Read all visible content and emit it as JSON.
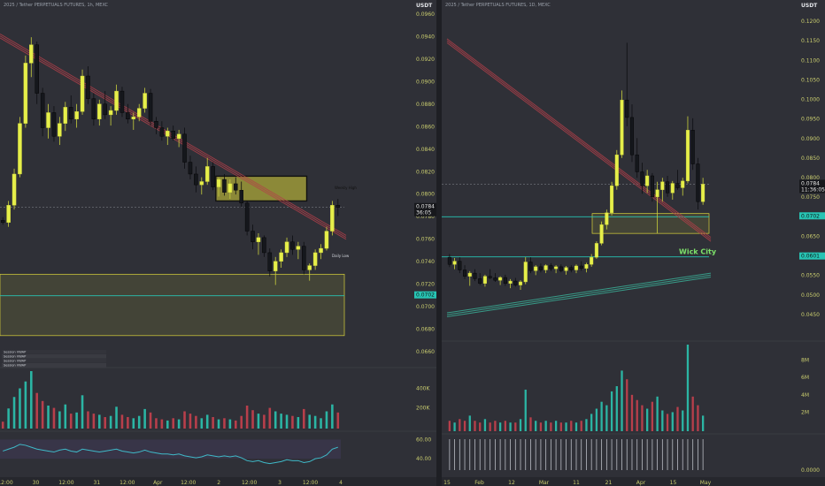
{
  "panels": [
    {
      "id": "left",
      "header": "2025 / Tether PERPETUALS FUTURES, 1h, MEXC",
      "unit": "USDT",
      "last_price": "0.0784",
      "countdown": "36:05",
      "marked_price": "0.0702",
      "price_ticks": [
        "0.0960",
        "0.0940",
        "0.0920",
        "0.0900",
        "0.0880",
        "0.0860",
        "0.0840",
        "0.0820",
        "0.0800",
        "0.0780",
        "0.0760",
        "0.0740",
        "0.0720",
        "0.0700",
        "0.0680",
        "0.0660"
      ],
      "volume_ticks": [
        "400K",
        "200K"
      ],
      "osc_ticks": [
        "60.00",
        "40.00"
      ],
      "time_ticks": [
        "12:00",
        "30",
        "12:00",
        "31",
        "12:00",
        "Apr",
        "12:00",
        "2",
        "12:00",
        "3",
        "12:00",
        "4"
      ],
      "zone_labels": [
        "Weekly High",
        "Daily Low"
      ],
      "table_rows": [
        "Session VWAP",
        "Session VWAP",
        "Session VWAP",
        "Session VWAP"
      ]
    },
    {
      "id": "right",
      "header": "2025 / Tether PERPETUALS FUTURES, 1D, MEXC",
      "unit": "USDT",
      "last_price": "0.0784",
      "countdown": "11:36:05",
      "marked_price": "0.0702",
      "marked_price_2": "0.0601",
      "annotation": "Wick City",
      "price_ticks": [
        "0.1200",
        "0.1150",
        "0.1100",
        "0.1050",
        "0.1000",
        "0.0950",
        "0.0900",
        "0.0850",
        "0.0800",
        "0.0750",
        "0.0700",
        "0.0650",
        "0.0600",
        "0.0550",
        "0.0500",
        "0.0450"
      ],
      "volume_ticks": [
        "8M",
        "6M",
        "4M",
        "2M"
      ],
      "osc_ticks": [
        "0.0000"
      ],
      "time_ticks": [
        "15",
        "Feb",
        "12",
        "Mar",
        "11",
        "21",
        "Apr",
        "15",
        "May"
      ]
    }
  ],
  "chart_data": [
    {
      "type": "candlestick",
      "panel": "left",
      "timeframe": "1h",
      "ylim": [
        0.0655,
        0.097
      ],
      "candles": [
        [
          0.0772,
          0.0775,
          0.0768,
          0.077
        ],
        [
          0.077,
          0.079,
          0.0766,
          0.0786
        ],
        [
          0.0786,
          0.082,
          0.0782,
          0.0815
        ],
        [
          0.0815,
          0.0868,
          0.0812,
          0.0862
        ],
        [
          0.0862,
          0.0925,
          0.0858,
          0.0918
        ],
        [
          0.0918,
          0.0942,
          0.0905,
          0.0935
        ],
        [
          0.0935,
          0.0938,
          0.088,
          0.089
        ],
        [
          0.089,
          0.0895,
          0.085,
          0.0858
        ],
        [
          0.0858,
          0.088,
          0.0848,
          0.0872
        ],
        [
          0.0872,
          0.0878,
          0.0845,
          0.085
        ],
        [
          0.085,
          0.0868,
          0.0842,
          0.0862
        ],
        [
          0.0862,
          0.0882,
          0.0855,
          0.0877
        ],
        [
          0.0877,
          0.0888,
          0.0862,
          0.0866
        ],
        [
          0.0866,
          0.088,
          0.0858,
          0.0873
        ],
        [
          0.0873,
          0.0912,
          0.087,
          0.0906
        ],
        [
          0.0906,
          0.0915,
          0.088,
          0.0885
        ],
        [
          0.0885,
          0.089,
          0.086,
          0.0866
        ],
        [
          0.0866,
          0.0884,
          0.086,
          0.088
        ],
        [
          0.088,
          0.0892,
          0.0866,
          0.087
        ],
        [
          0.087,
          0.0878,
          0.086,
          0.0874
        ],
        [
          0.0874,
          0.0898,
          0.087,
          0.0892
        ],
        [
          0.0892,
          0.0896,
          0.0868,
          0.0872
        ],
        [
          0.0872,
          0.088,
          0.0862,
          0.0866
        ],
        [
          0.0866,
          0.0872,
          0.0856,
          0.0868
        ],
        [
          0.0868,
          0.088,
          0.0864,
          0.0876
        ],
        [
          0.0876,
          0.0895,
          0.0872,
          0.089
        ],
        [
          0.089,
          0.0894,
          0.086,
          0.0864
        ],
        [
          0.0864,
          0.0868,
          0.0852,
          0.0858
        ],
        [
          0.0858,
          0.0864,
          0.0846,
          0.085
        ],
        [
          0.085,
          0.0858,
          0.0842,
          0.0855
        ],
        [
          0.0855,
          0.086,
          0.0846,
          0.0848
        ],
        [
          0.0848,
          0.0856,
          0.084,
          0.0852
        ],
        [
          0.0852,
          0.0858,
          0.082,
          0.0826
        ],
        [
          0.0826,
          0.0832,
          0.081,
          0.0815
        ],
        [
          0.0815,
          0.0822,
          0.0798,
          0.0805
        ],
        [
          0.0805,
          0.0812,
          0.0796,
          0.0808
        ],
        [
          0.0808,
          0.083,
          0.0805,
          0.0822
        ],
        [
          0.0822,
          0.0826,
          0.08,
          0.0803
        ],
        [
          0.0803,
          0.0812,
          0.0794,
          0.081
        ],
        [
          0.081,
          0.0815,
          0.0795,
          0.0798
        ],
        [
          0.0798,
          0.081,
          0.0792,
          0.0806
        ],
        [
          0.0806,
          0.0812,
          0.0796,
          0.08
        ],
        [
          0.08,
          0.0808,
          0.0784,
          0.0788
        ],
        [
          0.0788,
          0.079,
          0.0758,
          0.0762
        ],
        [
          0.0762,
          0.0768,
          0.0745,
          0.0752
        ],
        [
          0.0752,
          0.076,
          0.074,
          0.0756
        ],
        [
          0.0756,
          0.0758,
          0.0738,
          0.0742
        ],
        [
          0.0742,
          0.0746,
          0.072,
          0.0725
        ],
        [
          0.0725,
          0.0738,
          0.0712,
          0.0734
        ],
        [
          0.0734,
          0.0745,
          0.0728,
          0.0742
        ],
        [
          0.0742,
          0.0756,
          0.0738,
          0.0752
        ],
        [
          0.0752,
          0.0758,
          0.074,
          0.0745
        ],
        [
          0.0745,
          0.0752,
          0.0736,
          0.0748
        ],
        [
          0.0748,
          0.0752,
          0.0722,
          0.0726
        ],
        [
          0.0726,
          0.0732,
          0.0716,
          0.073
        ],
        [
          0.073,
          0.0745,
          0.0726,
          0.0742
        ],
        [
          0.0742,
          0.075,
          0.0736,
          0.0746
        ],
        [
          0.0746,
          0.0766,
          0.0744,
          0.0762
        ],
        [
          0.0762,
          0.079,
          0.0758,
          0.0786
        ],
        [
          0.0786,
          0.0792,
          0.0776,
          0.0784
        ]
      ],
      "volume": [
        0.12,
        0.35,
        0.55,
        0.7,
        0.82,
        1.0,
        0.62,
        0.48,
        0.4,
        0.36,
        0.3,
        0.42,
        0.26,
        0.28,
        0.58,
        0.3,
        0.26,
        0.24,
        0.2,
        0.22,
        0.38,
        0.24,
        0.2,
        0.18,
        0.22,
        0.34,
        0.28,
        0.18,
        0.16,
        0.14,
        0.18,
        0.16,
        0.3,
        0.26,
        0.22,
        0.18,
        0.24,
        0.2,
        0.16,
        0.18,
        0.16,
        0.14,
        0.22,
        0.4,
        0.32,
        0.26,
        0.24,
        0.36,
        0.3,
        0.26,
        0.24,
        0.22,
        0.2,
        0.34,
        0.24,
        0.22,
        0.18,
        0.3,
        0.42,
        0.28
      ],
      "oscillator": [
        48,
        50,
        52,
        55,
        54,
        52,
        50,
        49,
        48,
        47,
        49,
        50,
        48,
        47,
        50,
        49,
        48,
        47,
        48,
        49,
        50,
        48,
        47,
        46,
        47,
        49,
        47,
        46,
        45,
        45,
        44,
        45,
        43,
        42,
        41,
        42,
        44,
        43,
        42,
        43,
        42,
        43,
        41,
        38,
        37,
        38,
        36,
        35,
        36,
        37,
        39,
        38,
        38,
        36,
        37,
        40,
        41,
        44,
        50,
        52
      ],
      "osc_range": [
        30,
        65
      ],
      "trendline": [
        [
          0.0945,
          0
        ],
        [
          0.0758,
          1
        ]
      ],
      "zones": [
        {
          "name": "supply-box",
          "y": [
            0.079,
            0.0813
          ]
        },
        {
          "name": "demand-zone",
          "y": [
            0.0665,
            0.0722
          ]
        }
      ],
      "horizontal_levels": [
        0.0784,
        0.0702
      ]
    },
    {
      "type": "candlestick",
      "panel": "right",
      "timeframe": "1D",
      "ylim": [
        0.042,
        0.123
      ],
      "candles": [
        [
          0.06,
          0.0608,
          0.0575,
          0.0582
        ],
        [
          0.0582,
          0.0598,
          0.057,
          0.059
        ],
        [
          0.059,
          0.06,
          0.056,
          0.0568
        ],
        [
          0.0568,
          0.058,
          0.0545,
          0.0552
        ],
        [
          0.0552,
          0.0565,
          0.0528,
          0.056
        ],
        [
          0.056,
          0.057,
          0.054,
          0.0546
        ],
        [
          0.0546,
          0.056,
          0.053,
          0.0534
        ],
        [
          0.0534,
          0.0556,
          0.0526,
          0.0552
        ],
        [
          0.0552,
          0.057,
          0.0545,
          0.0548
        ],
        [
          0.0548,
          0.056,
          0.0538,
          0.0542
        ],
        [
          0.0542,
          0.0552,
          0.053,
          0.0549
        ],
        [
          0.0549,
          0.0556,
          0.0528,
          0.0534
        ],
        [
          0.0534,
          0.0545,
          0.0522,
          0.054
        ],
        [
          0.054,
          0.0548,
          0.0526,
          0.053
        ],
        [
          0.053,
          0.0542,
          0.0518,
          0.0538
        ],
        [
          0.0538,
          0.06,
          0.0532,
          0.0588
        ],
        [
          0.0588,
          0.06,
          0.056,
          0.0566
        ],
        [
          0.0566,
          0.058,
          0.0555,
          0.0576
        ],
        [
          0.0576,
          0.0584,
          0.0562,
          0.0568
        ],
        [
          0.0568,
          0.0582,
          0.056,
          0.0579
        ],
        [
          0.0579,
          0.0585,
          0.0565,
          0.0571
        ],
        [
          0.0571,
          0.058,
          0.056,
          0.0576
        ],
        [
          0.0576,
          0.0582,
          0.0562,
          0.0566
        ],
        [
          0.0566,
          0.0578,
          0.0556,
          0.0574
        ],
        [
          0.0574,
          0.058,
          0.0562,
          0.0568
        ],
        [
          0.0568,
          0.0582,
          0.056,
          0.0578
        ],
        [
          0.0578,
          0.059,
          0.0566,
          0.0572
        ],
        [
          0.0572,
          0.0586,
          0.0562,
          0.0582
        ],
        [
          0.0582,
          0.0608,
          0.0576,
          0.06
        ],
        [
          0.06,
          0.064,
          0.0596,
          0.0635
        ],
        [
          0.0635,
          0.069,
          0.063,
          0.0682
        ],
        [
          0.0682,
          0.072,
          0.067,
          0.0712
        ],
        [
          0.0712,
          0.079,
          0.0705,
          0.078
        ],
        [
          0.078,
          0.087,
          0.077,
          0.0858
        ],
        [
          0.0858,
          0.102,
          0.085,
          0.0996
        ],
        [
          0.0996,
          0.114,
          0.093,
          0.0952
        ],
        [
          0.0952,
          0.0985,
          0.084,
          0.0858
        ],
        [
          0.0858,
          0.09,
          0.08,
          0.0815
        ],
        [
          0.0815,
          0.0838,
          0.076,
          0.078
        ],
        [
          0.078,
          0.082,
          0.0762,
          0.0805
        ],
        [
          0.0805,
          0.0812,
          0.074,
          0.0752
        ],
        [
          0.0752,
          0.079,
          0.066,
          0.077
        ],
        [
          0.077,
          0.08,
          0.074,
          0.079
        ],
        [
          0.079,
          0.0805,
          0.0752,
          0.0762
        ],
        [
          0.0762,
          0.0792,
          0.0745,
          0.0786
        ],
        [
          0.0786,
          0.082,
          0.077,
          0.0775
        ],
        [
          0.0775,
          0.08,
          0.0755,
          0.0792
        ],
        [
          0.0792,
          0.0955,
          0.0786,
          0.092
        ],
        [
          0.092,
          0.095,
          0.082,
          0.0835
        ],
        [
          0.0835,
          0.085,
          0.072,
          0.074
        ],
        [
          0.074,
          0.08,
          0.0732,
          0.0784
        ]
      ],
      "volume": [
        0.12,
        0.1,
        0.14,
        0.12,
        0.18,
        0.12,
        0.1,
        0.14,
        0.1,
        0.12,
        0.1,
        0.12,
        0.1,
        0.1,
        0.14,
        0.48,
        0.16,
        0.12,
        0.1,
        0.12,
        0.1,
        0.12,
        0.1,
        0.1,
        0.12,
        0.1,
        0.12,
        0.14,
        0.2,
        0.26,
        0.34,
        0.3,
        0.46,
        0.52,
        0.7,
        0.6,
        0.42,
        0.36,
        0.3,
        0.26,
        0.34,
        0.4,
        0.24,
        0.2,
        0.22,
        0.28,
        0.24,
        1.0,
        0.4,
        0.3,
        0.18
      ],
      "trendlines": [
        {
          "name": "descending-resistance",
          "points": [
            [
              0.115,
              0.0
            ],
            [
              0.065,
              1.0
            ]
          ]
        },
        {
          "name": "ascending-support",
          "points": [
            [
              0.046,
              0.0
            ],
            [
              0.056,
              1.0
            ]
          ]
        }
      ],
      "zones": [
        {
          "name": "demand-zone",
          "y": [
            0.066,
            0.071
          ]
        }
      ],
      "horizontal_levels": [
        0.0784,
        0.0702,
        0.0601
      ]
    }
  ],
  "colors": {
    "background": "#2f3037",
    "bull": "#e6ef4a",
    "bear": "#15171c",
    "volume_up": "#2bb5a4",
    "volume_down": "#b83f4b",
    "trendline": "#b3404a",
    "zone_fill": "#d9d33a",
    "axis_text": "#c9cc6e",
    "level_green": "#27c4b4"
  }
}
